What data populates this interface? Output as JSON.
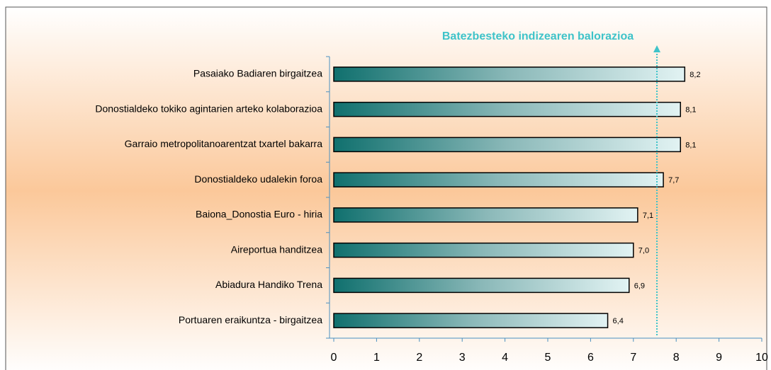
{
  "chart_data": {
    "type": "bar",
    "orientation": "horizontal",
    "categories": [
      "Pasaiako Badiaren birgaitzea",
      "Donostialdeko tokiko agintarien arteko kolaborazioa",
      "Garraio metropolitanoarentzat txartel bakarra",
      "Donostialdeko udalekin foroa",
      "Baiona_Donostia Euro - hiria",
      "Aireportua handitzea",
      "Abiadura Handiko Trena",
      "Portuaren eraikuntza - birgaitzea"
    ],
    "values": [
      8.2,
      8.1,
      8.1,
      7.7,
      7.1,
      7.0,
      6.9,
      6.4
    ],
    "value_labels": [
      "8,2",
      "8,1",
      "8,1",
      "7,7",
      "7,1",
      "7,0",
      "6,9",
      "6,4"
    ],
    "color": "#1a7a78",
    "xlim": [
      0,
      10
    ],
    "xticks": [
      0,
      1,
      2,
      3,
      4,
      5,
      6,
      7,
      8,
      9,
      10
    ],
    "annotation": {
      "text": "Batezbesteko indizearen balorazioa",
      "value": 7.55,
      "color": "#3ec3c9"
    }
  }
}
